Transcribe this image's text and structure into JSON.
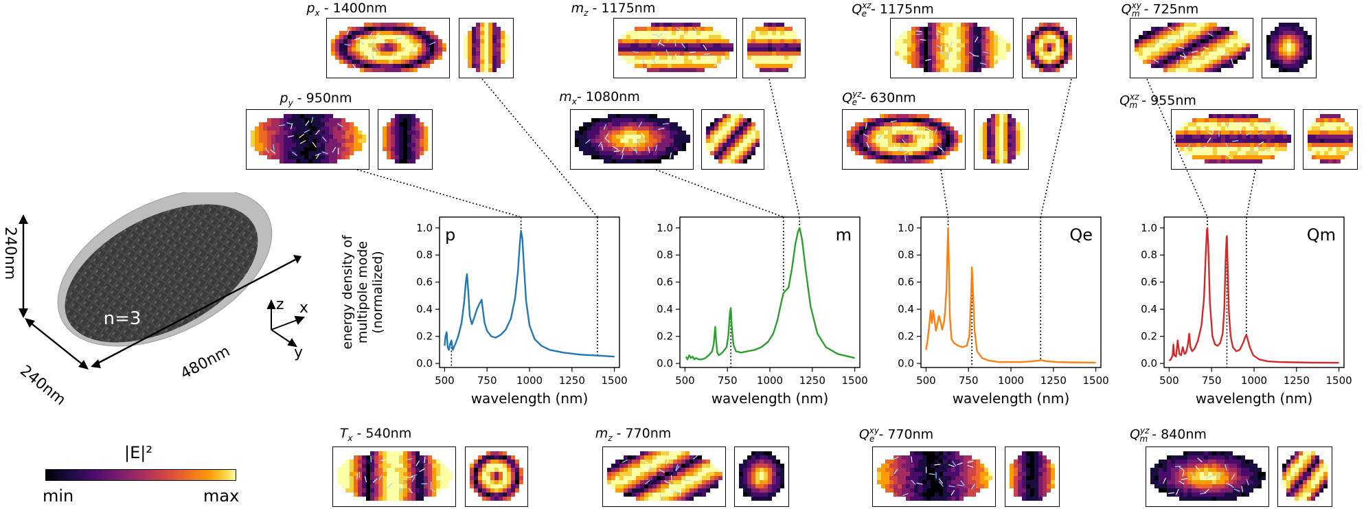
{
  "geometry": {
    "n_label": "n=3",
    "dim_height": "240nm",
    "dim_depth": "240nm",
    "dim_length": "480nm",
    "axes": {
      "x": "x",
      "y": "y",
      "z": "z"
    }
  },
  "colorbar": {
    "label": "|E|²",
    "min": "min",
    "max": "max"
  },
  "mode_maps": [
    {
      "var": "p",
      "sub": "x",
      "sup": "",
      "wavelength": " - 1400nm"
    },
    {
      "var": "m",
      "sub": "z",
      "sup": "",
      "wavelength": " - 1175nm"
    },
    {
      "var": "Q",
      "sub": "e",
      "sup": "xz",
      "wavelength": " - 1175nm"
    },
    {
      "var": "Q",
      "sub": "m",
      "sup": "xy",
      "wavelength": " - 725nm"
    },
    {
      "var": "p",
      "sub": "y",
      "sup": "",
      "wavelength": " - 950nm"
    },
    {
      "var": "m",
      "sub": "x",
      "sup": "",
      "wavelength": "- 1080nm"
    },
    {
      "var": "Q",
      "sub": "e",
      "sup": "yz",
      "wavelength": " - 630nm"
    },
    {
      "var": "Q",
      "sub": "m",
      "sup": "xz",
      "wavelength": " - 955nm"
    },
    {
      "var": "T",
      "sub": "x",
      "sup": "",
      "wavelength": " - 540nm"
    },
    {
      "var": "m",
      "sub": "z",
      "sup": "",
      "wavelength": " - 770nm"
    },
    {
      "var": "Q",
      "sub": "e",
      "sup": "xy",
      "wavelength": " - 770nm"
    },
    {
      "var": "Q",
      "sub": "m",
      "sup": "yz",
      "wavelength": " - 840nm"
    }
  ],
  "colors": {
    "p": "#1f77b4",
    "m": "#2ca02c",
    "Qe": "#ff7f0e",
    "Qm": "#d62728"
  },
  "chart_data": [
    {
      "type": "line",
      "panel_label": "p",
      "xlabel": "wavelength (nm)",
      "ylabel": "energy density of multipole mode (normalized)",
      "xlim": [
        470,
        1530
      ],
      "ylim": [
        -0.03,
        1.08
      ],
      "xticks": [
        500,
        750,
        1000,
        1250,
        1500
      ],
      "yticks": [
        0.0,
        0.2,
        0.4,
        0.6,
        0.8,
        1.0
      ],
      "x": [
        500,
        505,
        512,
        518,
        525,
        532,
        540,
        548,
        555,
        565,
        580,
        600,
        615,
        625,
        632,
        640,
        648,
        660,
        675,
        690,
        705,
        718,
        725,
        735,
        750,
        775,
        800,
        830,
        860,
        890,
        915,
        932,
        942,
        950,
        958,
        968,
        980,
        1000,
        1030,
        1070,
        1120,
        1200,
        1300,
        1400,
        1500
      ],
      "values": [
        0.13,
        0.2,
        0.23,
        0.12,
        0.1,
        0.14,
        0.17,
        0.1,
        0.12,
        0.15,
        0.2,
        0.3,
        0.45,
        0.6,
        0.66,
        0.52,
        0.35,
        0.29,
        0.34,
        0.4,
        0.44,
        0.47,
        0.4,
        0.3,
        0.24,
        0.2,
        0.19,
        0.21,
        0.25,
        0.33,
        0.48,
        0.68,
        0.87,
        0.98,
        0.92,
        0.7,
        0.46,
        0.28,
        0.18,
        0.13,
        0.1,
        0.08,
        0.065,
        0.058,
        0.05
      ],
      "markers": [
        950,
        1400,
        540
      ]
    },
    {
      "type": "line",
      "panel_label": "m",
      "xlabel": "wavelength (nm)",
      "xlim": [
        470,
        1530
      ],
      "ylim": [
        -0.03,
        1.08
      ],
      "xticks": [
        500,
        750,
        1000,
        1250,
        1500
      ],
      "yticks": [
        0.0,
        0.2,
        0.4,
        0.6,
        0.8,
        1.0
      ],
      "x": [
        505,
        515,
        525,
        535,
        545,
        555,
        565,
        580,
        600,
        620,
        640,
        660,
        670,
        678,
        684,
        690,
        700,
        720,
        745,
        755,
        765,
        770,
        775,
        785,
        800,
        830,
        870,
        910,
        950,
        990,
        1020,
        1045,
        1065,
        1080,
        1095,
        1110,
        1130,
        1150,
        1165,
        1175,
        1190,
        1210,
        1240,
        1280,
        1330,
        1400,
        1500
      ],
      "values": [
        0.05,
        0.03,
        0.06,
        0.04,
        0.05,
        0.03,
        0.04,
        0.03,
        0.03,
        0.04,
        0.06,
        0.09,
        0.15,
        0.27,
        0.16,
        0.08,
        0.06,
        0.08,
        0.12,
        0.2,
        0.38,
        0.41,
        0.28,
        0.14,
        0.09,
        0.08,
        0.09,
        0.1,
        0.12,
        0.16,
        0.22,
        0.32,
        0.44,
        0.52,
        0.54,
        0.56,
        0.7,
        0.88,
        0.97,
        1.0,
        0.91,
        0.7,
        0.42,
        0.22,
        0.12,
        0.07,
        0.04
      ],
      "markers": [
        1175,
        1080,
        770
      ]
    },
    {
      "type": "line",
      "panel_label": "Qe",
      "xlabel": "wavelength (nm)",
      "xlim": [
        470,
        1530
      ],
      "ylim": [
        -0.03,
        1.08
      ],
      "xticks": [
        500,
        750,
        1000,
        1250,
        1500
      ],
      "yticks": [
        0.0,
        0.2,
        0.4,
        0.6,
        0.8,
        1.0
      ],
      "x": [
        500,
        510,
        520,
        527,
        535,
        542,
        550,
        558,
        565,
        575,
        585,
        595,
        605,
        612,
        620,
        627,
        630,
        634,
        640,
        650,
        665,
        690,
        715,
        740,
        755,
        765,
        770,
        776,
        785,
        800,
        830,
        870,
        930,
        1000,
        1070,
        1120,
        1160,
        1175,
        1190,
        1220,
        1270,
        1350,
        1430,
        1500
      ],
      "values": [
        0.1,
        0.18,
        0.3,
        0.39,
        0.3,
        0.39,
        0.32,
        0.24,
        0.28,
        0.35,
        0.31,
        0.25,
        0.3,
        0.38,
        0.55,
        0.88,
        1.0,
        0.78,
        0.35,
        0.18,
        0.15,
        0.13,
        0.12,
        0.13,
        0.2,
        0.48,
        0.71,
        0.55,
        0.25,
        0.09,
        0.04,
        0.02,
        0.01,
        0.01,
        0.01,
        0.015,
        0.02,
        0.025,
        0.02,
        0.015,
        0.01,
        0.008,
        0.007,
        0.006
      ],
      "markers": [
        630,
        1175,
        770
      ]
    },
    {
      "type": "line",
      "panel_label": "Qm",
      "xlabel": "wavelength (nm)",
      "xlim": [
        470,
        1530
      ],
      "ylim": [
        -0.03,
        1.08
      ],
      "xticks": [
        500,
        750,
        1000,
        1250,
        1500
      ],
      "yticks": [
        0.0,
        0.2,
        0.4,
        0.6,
        0.8,
        1.0
      ],
      "x": [
        500,
        510,
        520,
        525,
        530,
        540,
        550,
        560,
        570,
        580,
        590,
        600,
        610,
        618,
        625,
        635,
        650,
        670,
        690,
        705,
        715,
        722,
        725,
        730,
        740,
        755,
        770,
        785,
        800,
        815,
        825,
        832,
        838,
        840,
        845,
        852,
        862,
        875,
        895,
        915,
        935,
        950,
        955,
        962,
        975,
        995,
        1030,
        1080,
        1150,
        1250,
        1350,
        1450,
        1500
      ],
      "values": [
        0.02,
        0.03,
        0.06,
        0.14,
        0.06,
        0.05,
        0.17,
        0.07,
        0.06,
        0.12,
        0.07,
        0.08,
        0.14,
        0.22,
        0.12,
        0.09,
        0.11,
        0.17,
        0.28,
        0.48,
        0.8,
        0.98,
        1.0,
        0.88,
        0.45,
        0.2,
        0.14,
        0.13,
        0.15,
        0.22,
        0.4,
        0.75,
        0.93,
        0.94,
        0.7,
        0.38,
        0.2,
        0.12,
        0.09,
        0.1,
        0.15,
        0.2,
        0.21,
        0.18,
        0.12,
        0.06,
        0.03,
        0.015,
        0.01,
        0.008,
        0.006,
        0.005,
        0.005
      ],
      "markers": [
        725,
        955,
        840
      ]
    }
  ]
}
